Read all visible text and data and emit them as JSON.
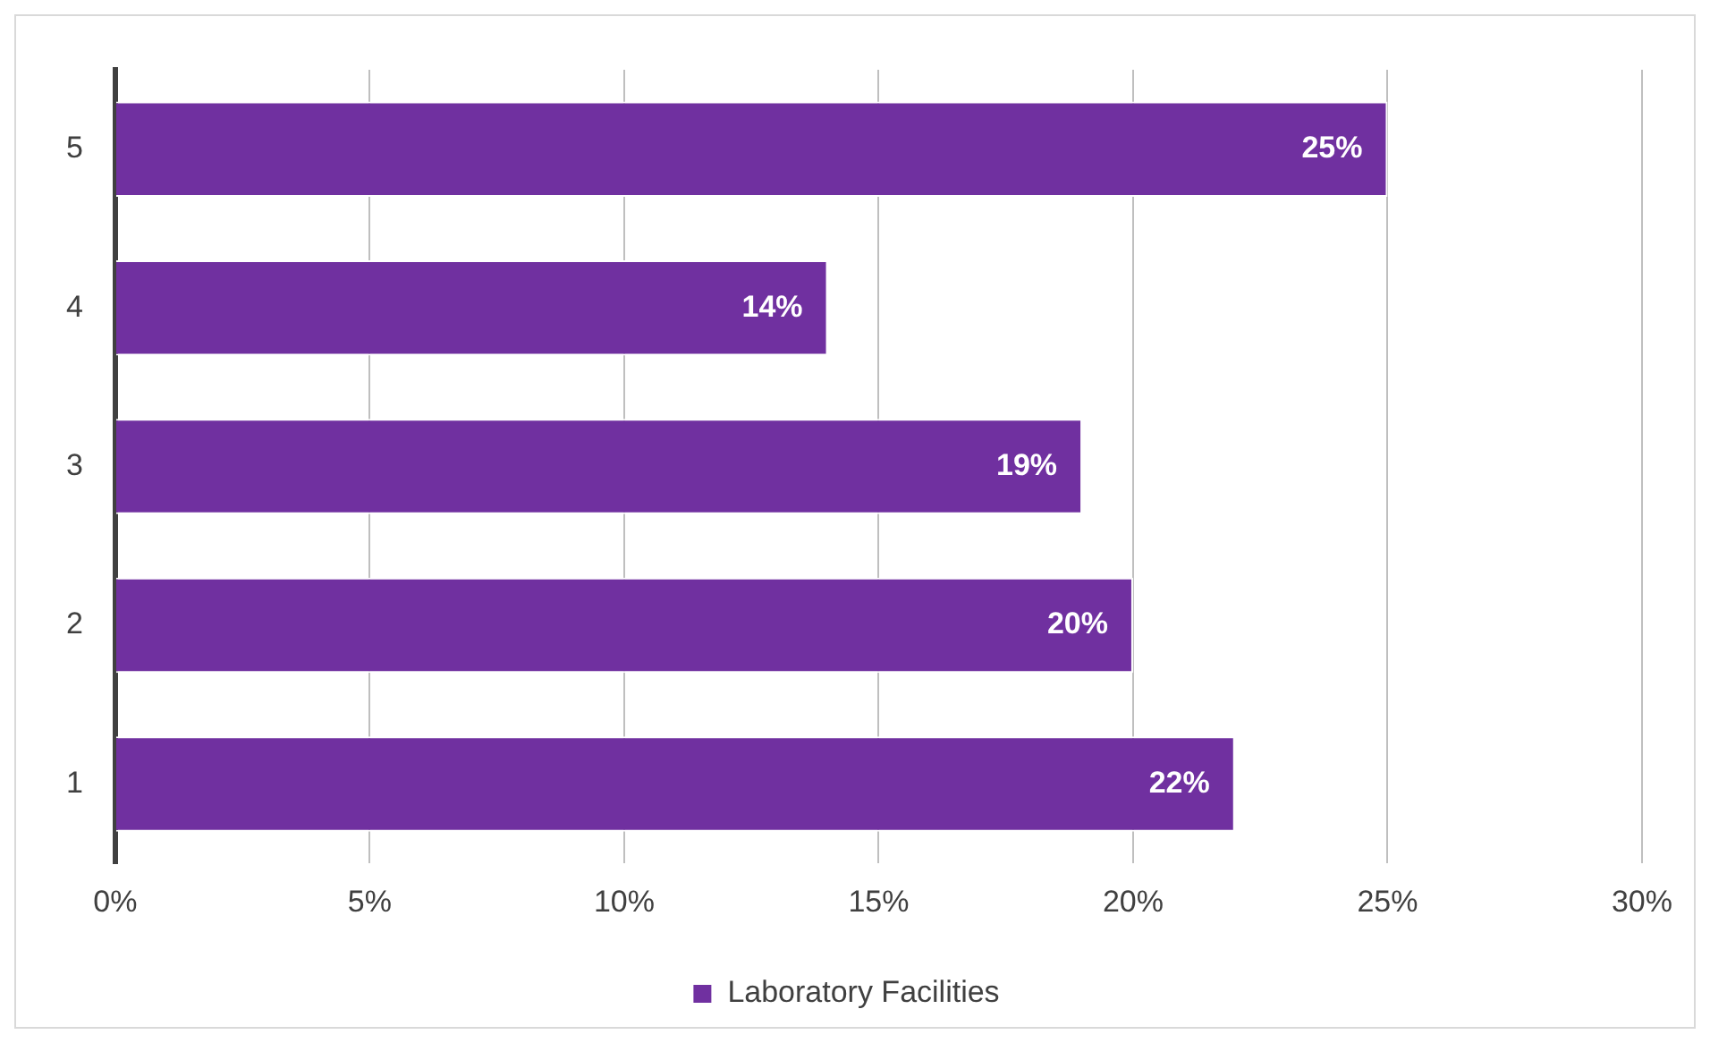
{
  "chart_data": {
    "type": "bar",
    "orientation": "horizontal",
    "categories": [
      "5",
      "4",
      "3",
      "2",
      "1"
    ],
    "series": [
      {
        "name": "Laboratory Facilities",
        "color": "#7030a0",
        "values": [
          25,
          14,
          19,
          20,
          22
        ],
        "value_labels": [
          "25%",
          "14%",
          "19%",
          "20%",
          "22%"
        ]
      }
    ],
    "xlim": [
      0,
      30
    ],
    "xticks": [
      {
        "value": 0,
        "label": "0%"
      },
      {
        "value": 5,
        "label": "5%"
      },
      {
        "value": 10,
        "label": "10%"
      },
      {
        "value": 15,
        "label": "15%"
      },
      {
        "value": 20,
        "label": "20%"
      },
      {
        "value": 25,
        "label": "25%"
      },
      {
        "value": 30,
        "label": "30%"
      }
    ],
    "grid": "x",
    "legend": "bottom"
  }
}
